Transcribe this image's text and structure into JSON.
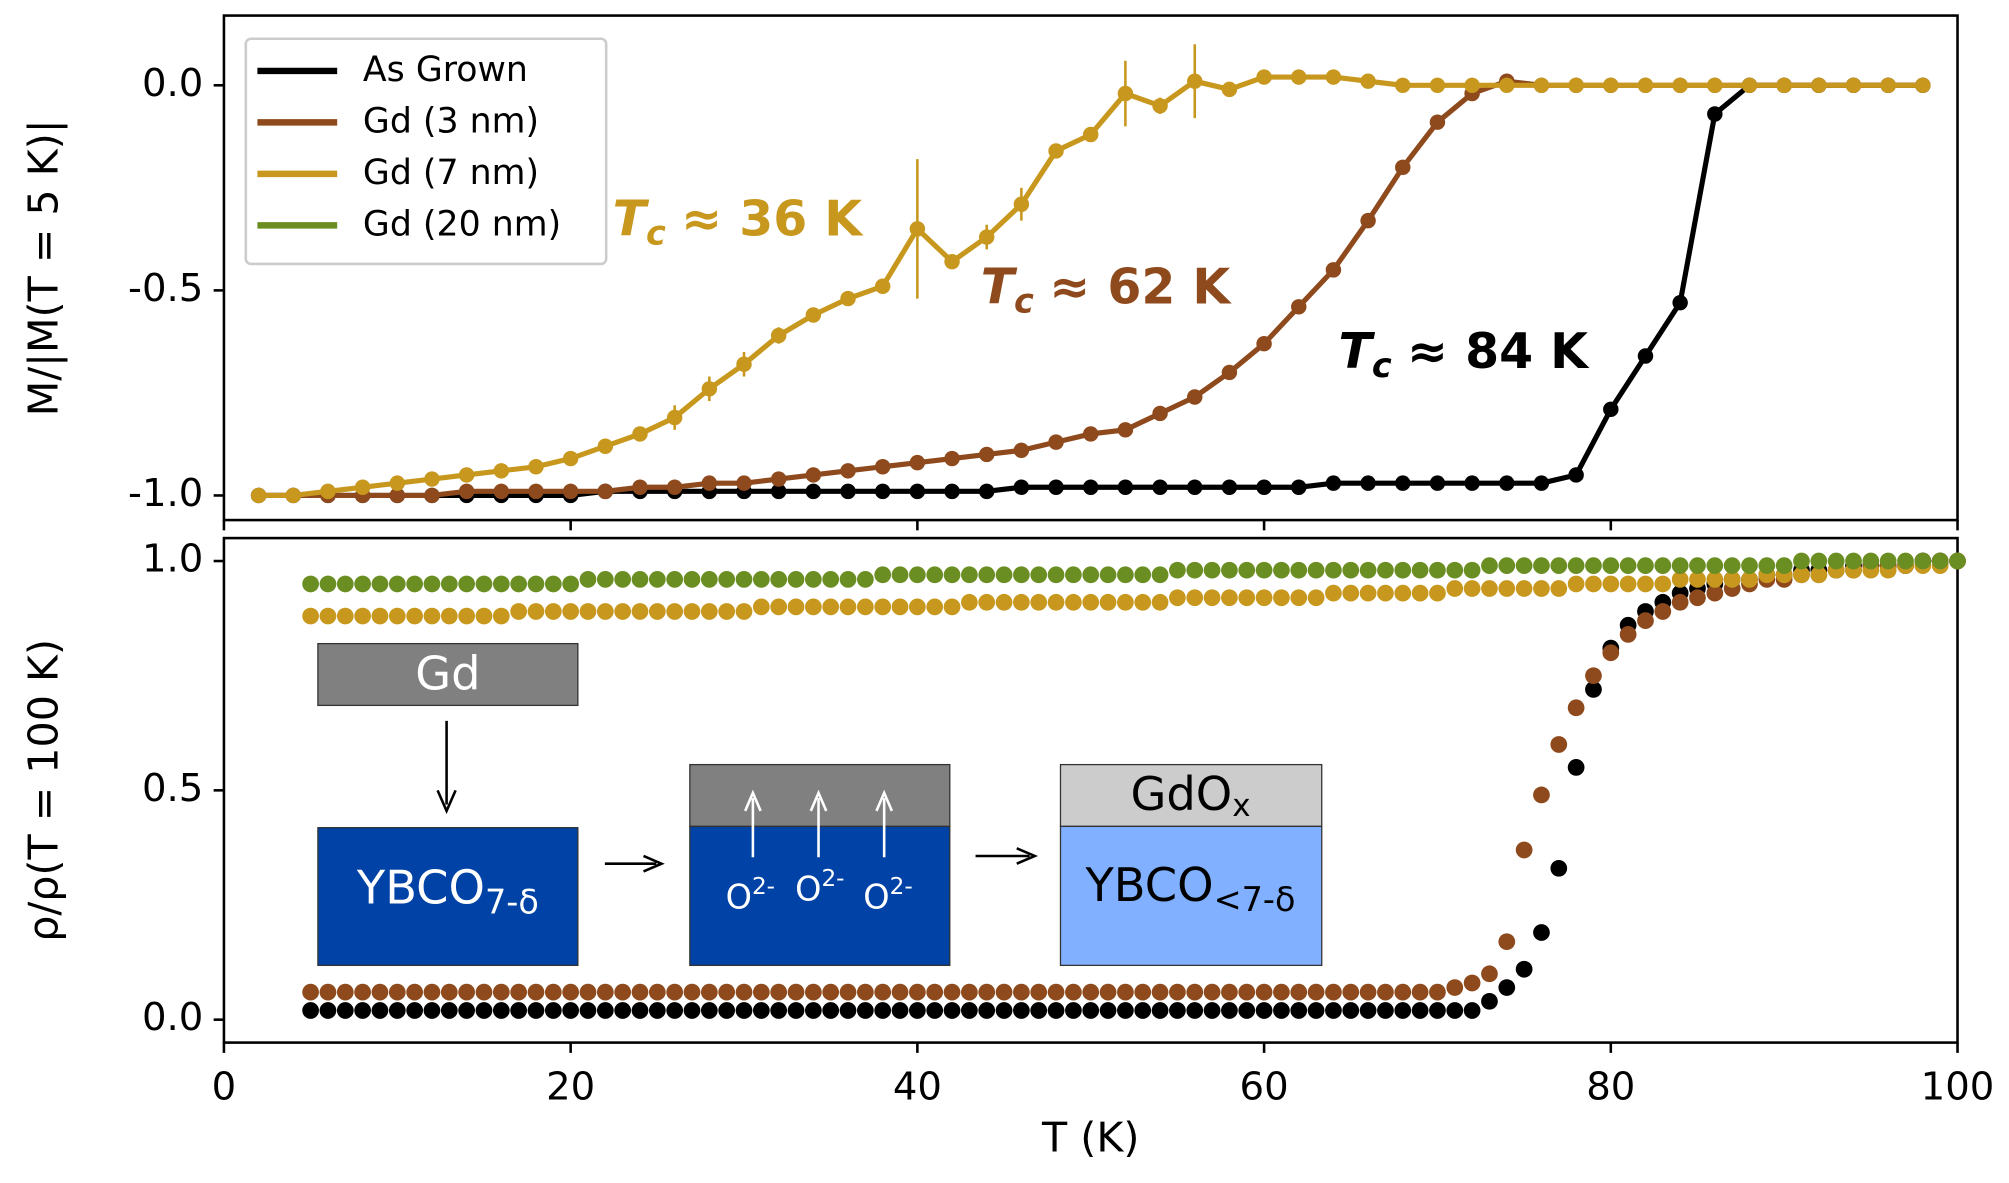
{
  "chart_data": [
    {
      "type": "line",
      "ylabel": "M/|M(T = 5 K)|",
      "xlim": [
        0,
        100
      ],
      "xticks": [
        0,
        20,
        40,
        60,
        80,
        100
      ],
      "ylim": [
        -1.06,
        0.17
      ],
      "yticks": [
        {
          "value": -1.0,
          "label": "-1.0"
        },
        {
          "value": -0.5,
          "label": "-0.5"
        },
        {
          "value": 0.0,
          "label": "0.0"
        }
      ],
      "legend": "upper left",
      "x": [
        2,
        4,
        6,
        8,
        10,
        12,
        14,
        16,
        18,
        20,
        22,
        24,
        26,
        28,
        30,
        32,
        34,
        36,
        38,
        40,
        42,
        44,
        46,
        48,
        50,
        52,
        54,
        56,
        58,
        60,
        62,
        64,
        66,
        68,
        70,
        72,
        74,
        76,
        78,
        80,
        82,
        84,
        86,
        88,
        90,
        92,
        94,
        96,
        98
      ],
      "series": [
        {
          "color": "#000000",
          "values": [
            -1.0,
            -1.0,
            -1.0,
            -1.0,
            -1.0,
            -1.0,
            -1.0,
            -1.0,
            -1.0,
            -1.0,
            -0.99,
            -0.99,
            -0.99,
            -0.99,
            -0.99,
            -0.99,
            -0.99,
            -0.99,
            -0.99,
            -0.99,
            -0.99,
            -0.99,
            -0.98,
            -0.98,
            -0.98,
            -0.98,
            -0.98,
            -0.98,
            -0.98,
            -0.98,
            -0.98,
            -0.97,
            -0.97,
            -0.97,
            -0.97,
            -0.97,
            -0.97,
            -0.97,
            -0.95,
            -0.79,
            -0.66,
            -0.53,
            -0.07,
            0.0,
            0.0,
            0.0,
            0.0,
            0.0,
            0.0
          ]
        },
        {
          "color": "#8e4a1c",
          "values": [
            -1.0,
            -1.0,
            -1.0,
            -1.0,
            -1.0,
            -1.0,
            -0.99,
            -0.99,
            -0.99,
            -0.99,
            -0.99,
            -0.98,
            -0.98,
            -0.97,
            -0.97,
            -0.96,
            -0.95,
            -0.94,
            -0.93,
            -0.92,
            -0.91,
            -0.9,
            -0.89,
            -0.87,
            -0.85,
            -0.84,
            -0.8,
            -0.76,
            -0.7,
            -0.63,
            -0.54,
            -0.45,
            -0.33,
            -0.2,
            -0.09,
            -0.02,
            0.01,
            0.0,
            0.0,
            0.0,
            0.0,
            0.0,
            0.0,
            0.0,
            0.0,
            0.0,
            0.0,
            0.0,
            0.0
          ]
        },
        {
          "color": "#c8981e",
          "values": [
            -1.0,
            -1.0,
            -0.99,
            -0.98,
            -0.97,
            -0.96,
            -0.95,
            -0.94,
            -0.93,
            -0.91,
            -0.88,
            -0.85,
            -0.81,
            -0.74,
            -0.68,
            -0.61,
            -0.56,
            -0.52,
            -0.49,
            -0.35,
            -0.43,
            -0.37,
            -0.29,
            -0.16,
            -0.12,
            -0.02,
            -0.05,
            0.01,
            -0.01,
            0.02,
            0.02,
            0.02,
            0.01,
            0.0,
            0.0,
            0.0,
            0.0,
            0.0,
            0.0,
            0.0,
            0.0,
            0.0,
            0.0,
            0.0,
            0.0,
            0.0,
            0.0,
            0.0,
            0.0
          ],
          "errors": [
            null,
            null,
            null,
            null,
            null,
            null,
            null,
            null,
            null,
            null,
            null,
            null,
            0.03,
            0.03,
            0.03,
            0.02,
            null,
            null,
            null,
            0.17,
            null,
            0.03,
            0.04,
            null,
            null,
            0.08,
            0.02,
            0.09,
            null,
            null,
            null,
            null,
            null,
            null,
            null,
            null,
            null,
            null,
            null,
            null,
            null,
            null,
            null,
            null,
            null,
            null,
            null,
            null,
            null
          ]
        }
      ],
      "annotations": [
        {
          "symbol": "T",
          "subscript": "c",
          "text": "≈ 36 K",
          "color": "#c8981e"
        },
        {
          "symbol": "T",
          "subscript": "c",
          "text": "≈ 62 K",
          "color": "#8e4a1c"
        },
        {
          "symbol": "T",
          "subscript": "c",
          "text": "≈ 84 K",
          "color": "#000000"
        }
      ]
    },
    {
      "type": "scatter",
      "xlabel": "T (K)",
      "ylabel": "ρ/ρ(T = 100 K)",
      "xlim": [
        0,
        100
      ],
      "xticks": [
        0,
        20,
        40,
        60,
        80,
        100
      ],
      "ylim": [
        -0.05,
        1.05
      ],
      "yticks": [
        {
          "value": 0.0,
          "label": "0.0"
        },
        {
          "value": 0.5,
          "label": "0.5"
        },
        {
          "value": 1.0,
          "label": "1.0"
        }
      ],
      "x": [
        5,
        6,
        7,
        8,
        9,
        10,
        11,
        12,
        13,
        14,
        15,
        16,
        17,
        18,
        19,
        20,
        21,
        22,
        23,
        24,
        25,
        26,
        27,
        28,
        29,
        30,
        31,
        32,
        33,
        34,
        35,
        36,
        37,
        38,
        39,
        40,
        41,
        42,
        43,
        44,
        45,
        46,
        47,
        48,
        49,
        50,
        51,
        52,
        53,
        54,
        55,
        56,
        57,
        58,
        59,
        60,
        61,
        62,
        63,
        64,
        65,
        66,
        67,
        68,
        69,
        70,
        71,
        72,
        73,
        74,
        75,
        76,
        77,
        78,
        79,
        80,
        81,
        82,
        83,
        84,
        85,
        86,
        87,
        88,
        89,
        90,
        91,
        92,
        93,
        94,
        95,
        96,
        97,
        98,
        99,
        100
      ],
      "series": [
        {
          "name": "As Grown",
          "color": "#000000",
          "values": [
            0.02,
            0.02,
            0.02,
            0.02,
            0.02,
            0.02,
            0.02,
            0.02,
            0.02,
            0.02,
            0.02,
            0.02,
            0.02,
            0.02,
            0.02,
            0.02,
            0.02,
            0.02,
            0.02,
            0.02,
            0.02,
            0.02,
            0.02,
            0.02,
            0.02,
            0.02,
            0.02,
            0.02,
            0.02,
            0.02,
            0.02,
            0.02,
            0.02,
            0.02,
            0.02,
            0.02,
            0.02,
            0.02,
            0.02,
            0.02,
            0.02,
            0.02,
            0.02,
            0.02,
            0.02,
            0.02,
            0.02,
            0.02,
            0.02,
            0.02,
            0.02,
            0.02,
            0.02,
            0.02,
            0.02,
            0.02,
            0.02,
            0.02,
            0.02,
            0.02,
            0.02,
            0.02,
            0.02,
            0.02,
            0.02,
            0.02,
            0.02,
            0.02,
            0.04,
            0.07,
            0.11,
            0.19,
            0.33,
            0.55,
            0.72,
            0.81,
            0.86,
            0.89,
            0.91,
            0.93,
            0.94,
            0.95,
            0.96,
            0.96,
            0.97,
            0.97,
            0.98,
            0.98,
            0.98,
            0.99,
            0.99,
            0.99,
            0.99,
            1.0,
            1.0,
            1.0
          ]
        },
        {
          "name": "Gd (3 nm)",
          "color": "#8e4a1c",
          "values": [
            0.06,
            0.06,
            0.06,
            0.06,
            0.06,
            0.06,
            0.06,
            0.06,
            0.06,
            0.06,
            0.06,
            0.06,
            0.06,
            0.06,
            0.06,
            0.06,
            0.06,
            0.06,
            0.06,
            0.06,
            0.06,
            0.06,
            0.06,
            0.06,
            0.06,
            0.06,
            0.06,
            0.06,
            0.06,
            0.06,
            0.06,
            0.06,
            0.06,
            0.06,
            0.06,
            0.06,
            0.06,
            0.06,
            0.06,
            0.06,
            0.06,
            0.06,
            0.06,
            0.06,
            0.06,
            0.06,
            0.06,
            0.06,
            0.06,
            0.06,
            0.06,
            0.06,
            0.06,
            0.06,
            0.06,
            0.06,
            0.06,
            0.06,
            0.06,
            0.06,
            0.06,
            0.06,
            0.06,
            0.06,
            0.06,
            0.06,
            0.07,
            0.08,
            0.1,
            0.17,
            0.37,
            0.49,
            0.6,
            0.68,
            0.75,
            0.8,
            0.84,
            0.87,
            0.89,
            0.91,
            0.92,
            0.93,
            0.94,
            0.95,
            0.96,
            0.96,
            0.97,
            0.97,
            0.98,
            0.98,
            0.99,
            0.99,
            0.99,
            1.0,
            1.0,
            1.0
          ]
        },
        {
          "name": "Gd (7 nm)",
          "color": "#c8981e",
          "values": [
            0.88,
            0.88,
            0.88,
            0.88,
            0.88,
            0.88,
            0.88,
            0.88,
            0.88,
            0.88,
            0.88,
            0.88,
            0.89,
            0.89,
            0.89,
            0.89,
            0.89,
            0.89,
            0.89,
            0.89,
            0.89,
            0.89,
            0.89,
            0.89,
            0.89,
            0.89,
            0.9,
            0.9,
            0.9,
            0.9,
            0.9,
            0.9,
            0.9,
            0.9,
            0.9,
            0.9,
            0.9,
            0.9,
            0.91,
            0.91,
            0.91,
            0.91,
            0.91,
            0.91,
            0.91,
            0.91,
            0.91,
            0.91,
            0.91,
            0.91,
            0.92,
            0.92,
            0.92,
            0.92,
            0.92,
            0.92,
            0.92,
            0.92,
            0.92,
            0.93,
            0.93,
            0.93,
            0.93,
            0.93,
            0.93,
            0.93,
            0.94,
            0.94,
            0.94,
            0.94,
            0.94,
            0.94,
            0.94,
            0.95,
            0.95,
            0.95,
            0.95,
            0.95,
            0.95,
            0.96,
            0.96,
            0.96,
            0.96,
            0.96,
            0.97,
            0.97,
            0.97,
            0.97,
            0.98,
            0.98,
            0.98,
            0.98,
            0.99,
            0.99,
            0.99,
            1.0
          ]
        },
        {
          "name": "Gd (20 nm)",
          "color": "#6b8e23",
          "values": [
            0.95,
            0.95,
            0.95,
            0.95,
            0.95,
            0.95,
            0.95,
            0.95,
            0.95,
            0.95,
            0.95,
            0.95,
            0.95,
            0.95,
            0.95,
            0.95,
            0.96,
            0.96,
            0.96,
            0.96,
            0.96,
            0.96,
            0.96,
            0.96,
            0.96,
            0.96,
            0.96,
            0.96,
            0.96,
            0.96,
            0.96,
            0.96,
            0.96,
            0.97,
            0.97,
            0.97,
            0.97,
            0.97,
            0.97,
            0.97,
            0.97,
            0.97,
            0.97,
            0.97,
            0.97,
            0.97,
            0.97,
            0.97,
            0.97,
            0.97,
            0.98,
            0.98,
            0.98,
            0.98,
            0.98,
            0.98,
            0.98,
            0.98,
            0.98,
            0.98,
            0.98,
            0.98,
            0.98,
            0.98,
            0.98,
            0.98,
            0.98,
            0.98,
            0.99,
            0.99,
            0.99,
            0.99,
            0.99,
            0.99,
            0.99,
            0.99,
            0.99,
            0.99,
            0.99,
            0.99,
            0.99,
            0.99,
            0.99,
            0.99,
            0.99,
            0.99,
            1.0,
            1.0,
            1.0,
            1.0,
            1.0,
            1.0,
            1.0,
            1.0,
            1.0,
            1.0
          ]
        }
      ],
      "inset": {
        "deposit": "Gd",
        "film": {
          "base": "YBCO",
          "sub": "7-δ"
        },
        "ions": [
          {
            "base": "O",
            "sup": "2-"
          },
          {
            "base": "O",
            "sup": "2-"
          },
          {
            "base": "O",
            "sup": "2-"
          }
        ],
        "cap": {
          "base": "GdO",
          "sub": "x"
        },
        "reduced": {
          "base": "YBCO",
          "sub": "<7-δ"
        }
      }
    }
  ]
}
